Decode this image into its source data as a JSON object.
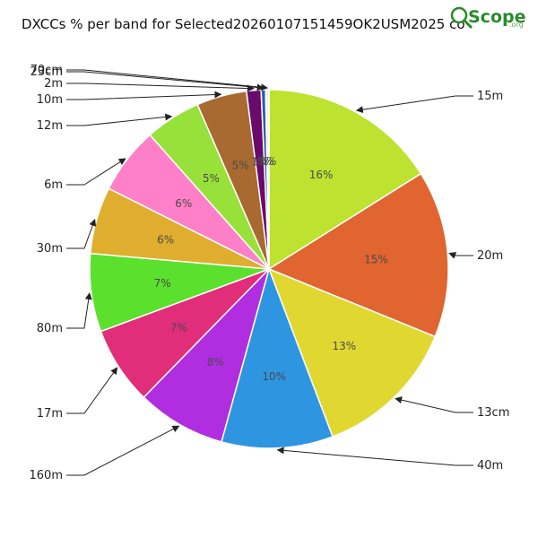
{
  "title": "DXCCs % per band for Selected20260107151459OK2USM2025 co",
  "logo": {
    "text": "Scope",
    "suffix": ".org"
  },
  "chart_data": {
    "type": "pie",
    "start_angle": "top",
    "direction": "clockwise",
    "slices": [
      {
        "label": "15m",
        "value": 16,
        "pct_label": "16%",
        "color": "#bde22f"
      },
      {
        "label": "20m",
        "value": 15,
        "pct_label": "15%",
        "color": "#e06530"
      },
      {
        "label": "13cm",
        "value": 13,
        "pct_label": "13%",
        "color": "#e0d830"
      },
      {
        "label": "40m",
        "value": 10,
        "pct_label": "10%",
        "color": "#2e96e0"
      },
      {
        "label": "160m",
        "value": 8,
        "pct_label": "8%",
        "color": "#b02ee0"
      },
      {
        "label": "17m",
        "value": 7,
        "pct_label": "7%",
        "color": "#e02e7a"
      },
      {
        "label": "80m",
        "value": 7,
        "pct_label": "7%",
        "color": "#5be02e"
      },
      {
        "label": "30m",
        "value": 6,
        "pct_label": "6%",
        "color": "#e0ae2e"
      },
      {
        "label": "6m",
        "value": 6,
        "pct_label": "6%",
        "color": "#ff80c8"
      },
      {
        "label": "12m",
        "value": 5,
        "pct_label": "5%",
        "color": "#98e03a"
      },
      {
        "label": "10m",
        "value": 4.5,
        "pct_label": "5%",
        "color": "#a86a30"
      },
      {
        "label": "2m",
        "value": 1.3,
        "pct_label": "1%",
        "color": "#6a0a6a"
      },
      {
        "label": "23cm",
        "value": 0.4,
        "pct_label": "0%",
        "color": "#2a5ab0"
      },
      {
        "label": "70cm",
        "value": 0.3,
        "pct_label": "0%",
        "color": "#f0f0e0"
      }
    ]
  }
}
